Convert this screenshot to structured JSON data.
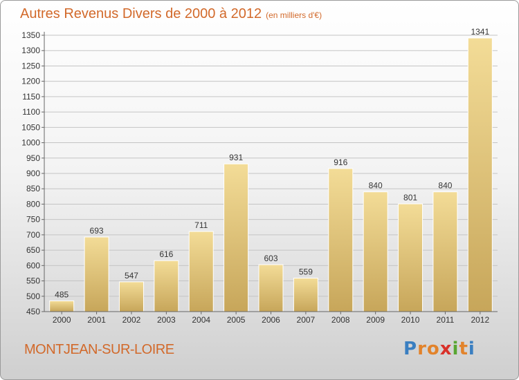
{
  "title": "Autres Revenus Divers de 2000 à 2012",
  "unit_note": "(en milliers d'€)",
  "city": "MONTJEAN-SUR-LOIRE",
  "logo": {
    "letters": [
      "P",
      "r",
      "o",
      "x",
      "i",
      "t",
      "i"
    ],
    "colors": [
      "#3a7fc1",
      "#e2832b",
      "#e2832b",
      "#d9312a",
      "#58a632",
      "#e2832b",
      "#3a7fc1"
    ]
  },
  "colors": {
    "title": "#d2692a",
    "bar_light": "#f3dc97",
    "bar_dark": "#c7a65a",
    "grid": "#c4c4c4"
  },
  "chart_data": {
    "type": "bar",
    "title": "Autres Revenus Divers de 2000 à 2012",
    "ylabel": "",
    "xlabel": "",
    "categories": [
      "2000",
      "2001",
      "2002",
      "2003",
      "2004",
      "2005",
      "2006",
      "2007",
      "2008",
      "2009",
      "2010",
      "2011",
      "2012"
    ],
    "values": [
      485,
      693,
      547,
      616,
      711,
      931,
      603,
      559,
      916,
      840,
      801,
      840,
      1341
    ],
    "ylim": [
      450,
      1350
    ],
    "ytick_step": 50,
    "grid": true,
    "data_labels": true
  }
}
